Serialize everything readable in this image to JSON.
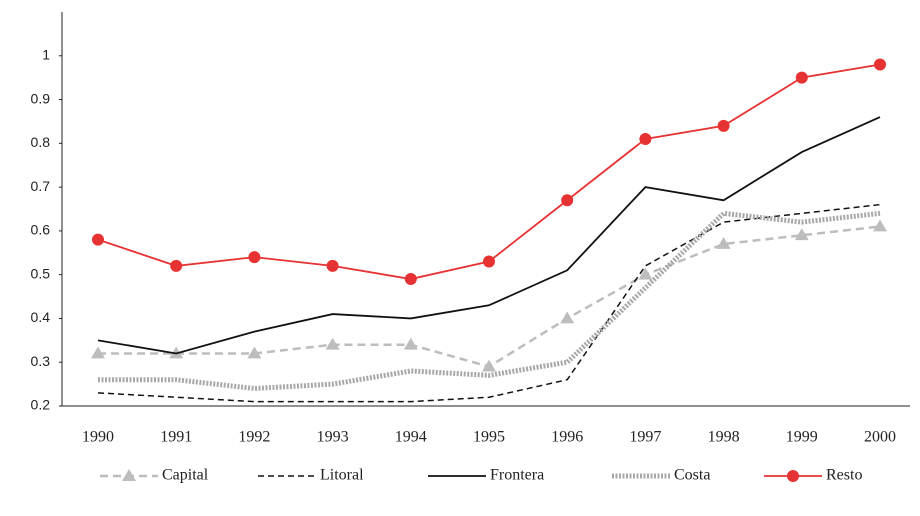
{
  "chart_data": {
    "type": "line",
    "categories": [
      "1990",
      "1991",
      "1992",
      "1993",
      "1994",
      "1995",
      "1996",
      "1997",
      "1998",
      "1999",
      "2000"
    ],
    "ylim": [
      0.2,
      1.1
    ],
    "yticks": [
      0.2,
      0.3,
      0.4,
      0.5,
      0.6,
      0.7,
      0.8,
      0.9,
      1
    ],
    "legend": "bottom",
    "series": [
      {
        "name": "Capital",
        "color": "#bdbdbd",
        "dash": "8,5",
        "marker": "triangle",
        "width": 2.5,
        "values": [
          0.32,
          0.32,
          0.32,
          0.34,
          0.34,
          0.29,
          0.4,
          0.5,
          0.57,
          0.59,
          0.61
        ]
      },
      {
        "name": "Litoral",
        "color": "#111111",
        "dash": "6,4",
        "marker": "none",
        "width": 1.5,
        "values": [
          0.23,
          0.22,
          0.21,
          0.21,
          0.21,
          0.22,
          0.26,
          0.52,
          0.62,
          0.64,
          0.66
        ]
      },
      {
        "name": "Frontera",
        "color": "#111111",
        "dash": "none",
        "marker": "none",
        "width": 1.8,
        "values": [
          0.35,
          0.32,
          0.37,
          0.41,
          0.4,
          0.43,
          0.51,
          0.7,
          0.67,
          0.78,
          0.86
        ]
      },
      {
        "name": "Costa",
        "color": "#a8a8a8",
        "dash": "2,1.5",
        "marker": "none",
        "width": 5,
        "values": [
          0.26,
          0.26,
          0.24,
          0.25,
          0.28,
          0.27,
          0.3,
          0.47,
          0.64,
          0.62,
          0.64
        ]
      },
      {
        "name": "Resto",
        "color": "#e63232",
        "dash": "none",
        "marker": "circle",
        "width": 1.8,
        "values": [
          0.58,
          0.52,
          0.54,
          0.52,
          0.49,
          0.53,
          0.67,
          0.81,
          0.84,
          0.95,
          0.98
        ]
      }
    ]
  }
}
